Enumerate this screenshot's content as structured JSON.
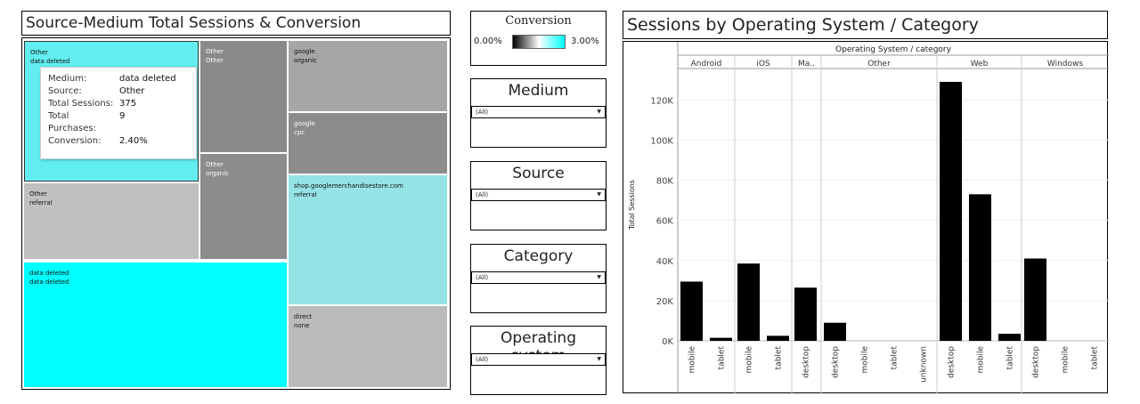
{
  "treemap": {
    "title": "Source-Medium Total Sessions & Conversion",
    "tiles": [
      {
        "line1": "Other",
        "line2": "data deleted",
        "color": "#62eef0"
      },
      {
        "line1": "Other",
        "line2": "referral",
        "color": "#c0c0c0"
      },
      {
        "line1": "Other",
        "line2": "Other",
        "color": "#8a8a8a"
      },
      {
        "line1": "Other",
        "line2": "organic",
        "color": "#8c8c8c"
      },
      {
        "line1": "google",
        "line2": "organic",
        "color": "#a6a6a6"
      },
      {
        "line1": "google",
        "line2": "cpc",
        "color": "#8c8c8c"
      },
      {
        "line1": "shop.googlemerchandisestore.com",
        "line2": "referral",
        "color": "#96e3e5"
      },
      {
        "line1": "data deleted",
        "line2": "data deleted",
        "color": "#00ffff"
      },
      {
        "line1": "direct",
        "line2": "none",
        "color": "#bbbbbb"
      }
    ],
    "tooltip": {
      "rows": [
        {
          "k": "Medium:",
          "v": "data deleted"
        },
        {
          "k": "Source:",
          "v": "Other"
        },
        {
          "k": "Total Sessions:",
          "v": "375"
        },
        {
          "k": "Total Purchases:",
          "v": "9"
        },
        {
          "k": "Conversion:",
          "v": "2.40%"
        }
      ]
    }
  },
  "legend": {
    "title": "Conversion",
    "min_label": "0.00%",
    "max_label": "3.00%",
    "gradient_colors": [
      "#000000",
      "#ffffff",
      "#00ffff"
    ]
  },
  "filters": [
    {
      "title": "Medium",
      "value": "(All)"
    },
    {
      "title": "Source",
      "value": "(All)"
    },
    {
      "title": "Category",
      "value": "(All)"
    },
    {
      "title": "Operating system",
      "value": "(All)"
    }
  ],
  "bar_panel": {
    "title": "Sessions by Operating System / Category",
    "header": "Operating System / category"
  },
  "chart_data": {
    "type": "bar",
    "ylabel": "Total Sessions",
    "ylim": [
      0,
      130000
    ],
    "yticks": [
      0,
      20000,
      40000,
      60000,
      80000,
      100000,
      120000
    ],
    "ytick_labels": [
      "0K",
      "20K",
      "40K",
      "60K",
      "80K",
      "100K",
      "120K"
    ],
    "bar_color": "#000000",
    "groups": [
      {
        "name": "Android",
        "categories": [
          "mobile",
          "tablet"
        ],
        "values": [
          29500,
          1500
        ]
      },
      {
        "name": "iOS",
        "categories": [
          "mobile",
          "tablet"
        ],
        "values": [
          38500,
          2500
        ]
      },
      {
        "name": "Ma..",
        "categories": [
          "desktop"
        ],
        "values": [
          26500
        ]
      },
      {
        "name": "Other",
        "categories": [
          "desktop",
          "mobile",
          "tablet",
          "unknown"
        ],
        "values": [
          9000,
          0,
          0,
          0
        ]
      },
      {
        "name": "Web",
        "categories": [
          "desktop",
          "mobile",
          "tablet"
        ],
        "values": [
          129000,
          73000,
          3500
        ]
      },
      {
        "name": "Windows",
        "categories": [
          "desktop",
          "mobile",
          "tablet"
        ],
        "values": [
          41000,
          0,
          0
        ]
      }
    ]
  }
}
